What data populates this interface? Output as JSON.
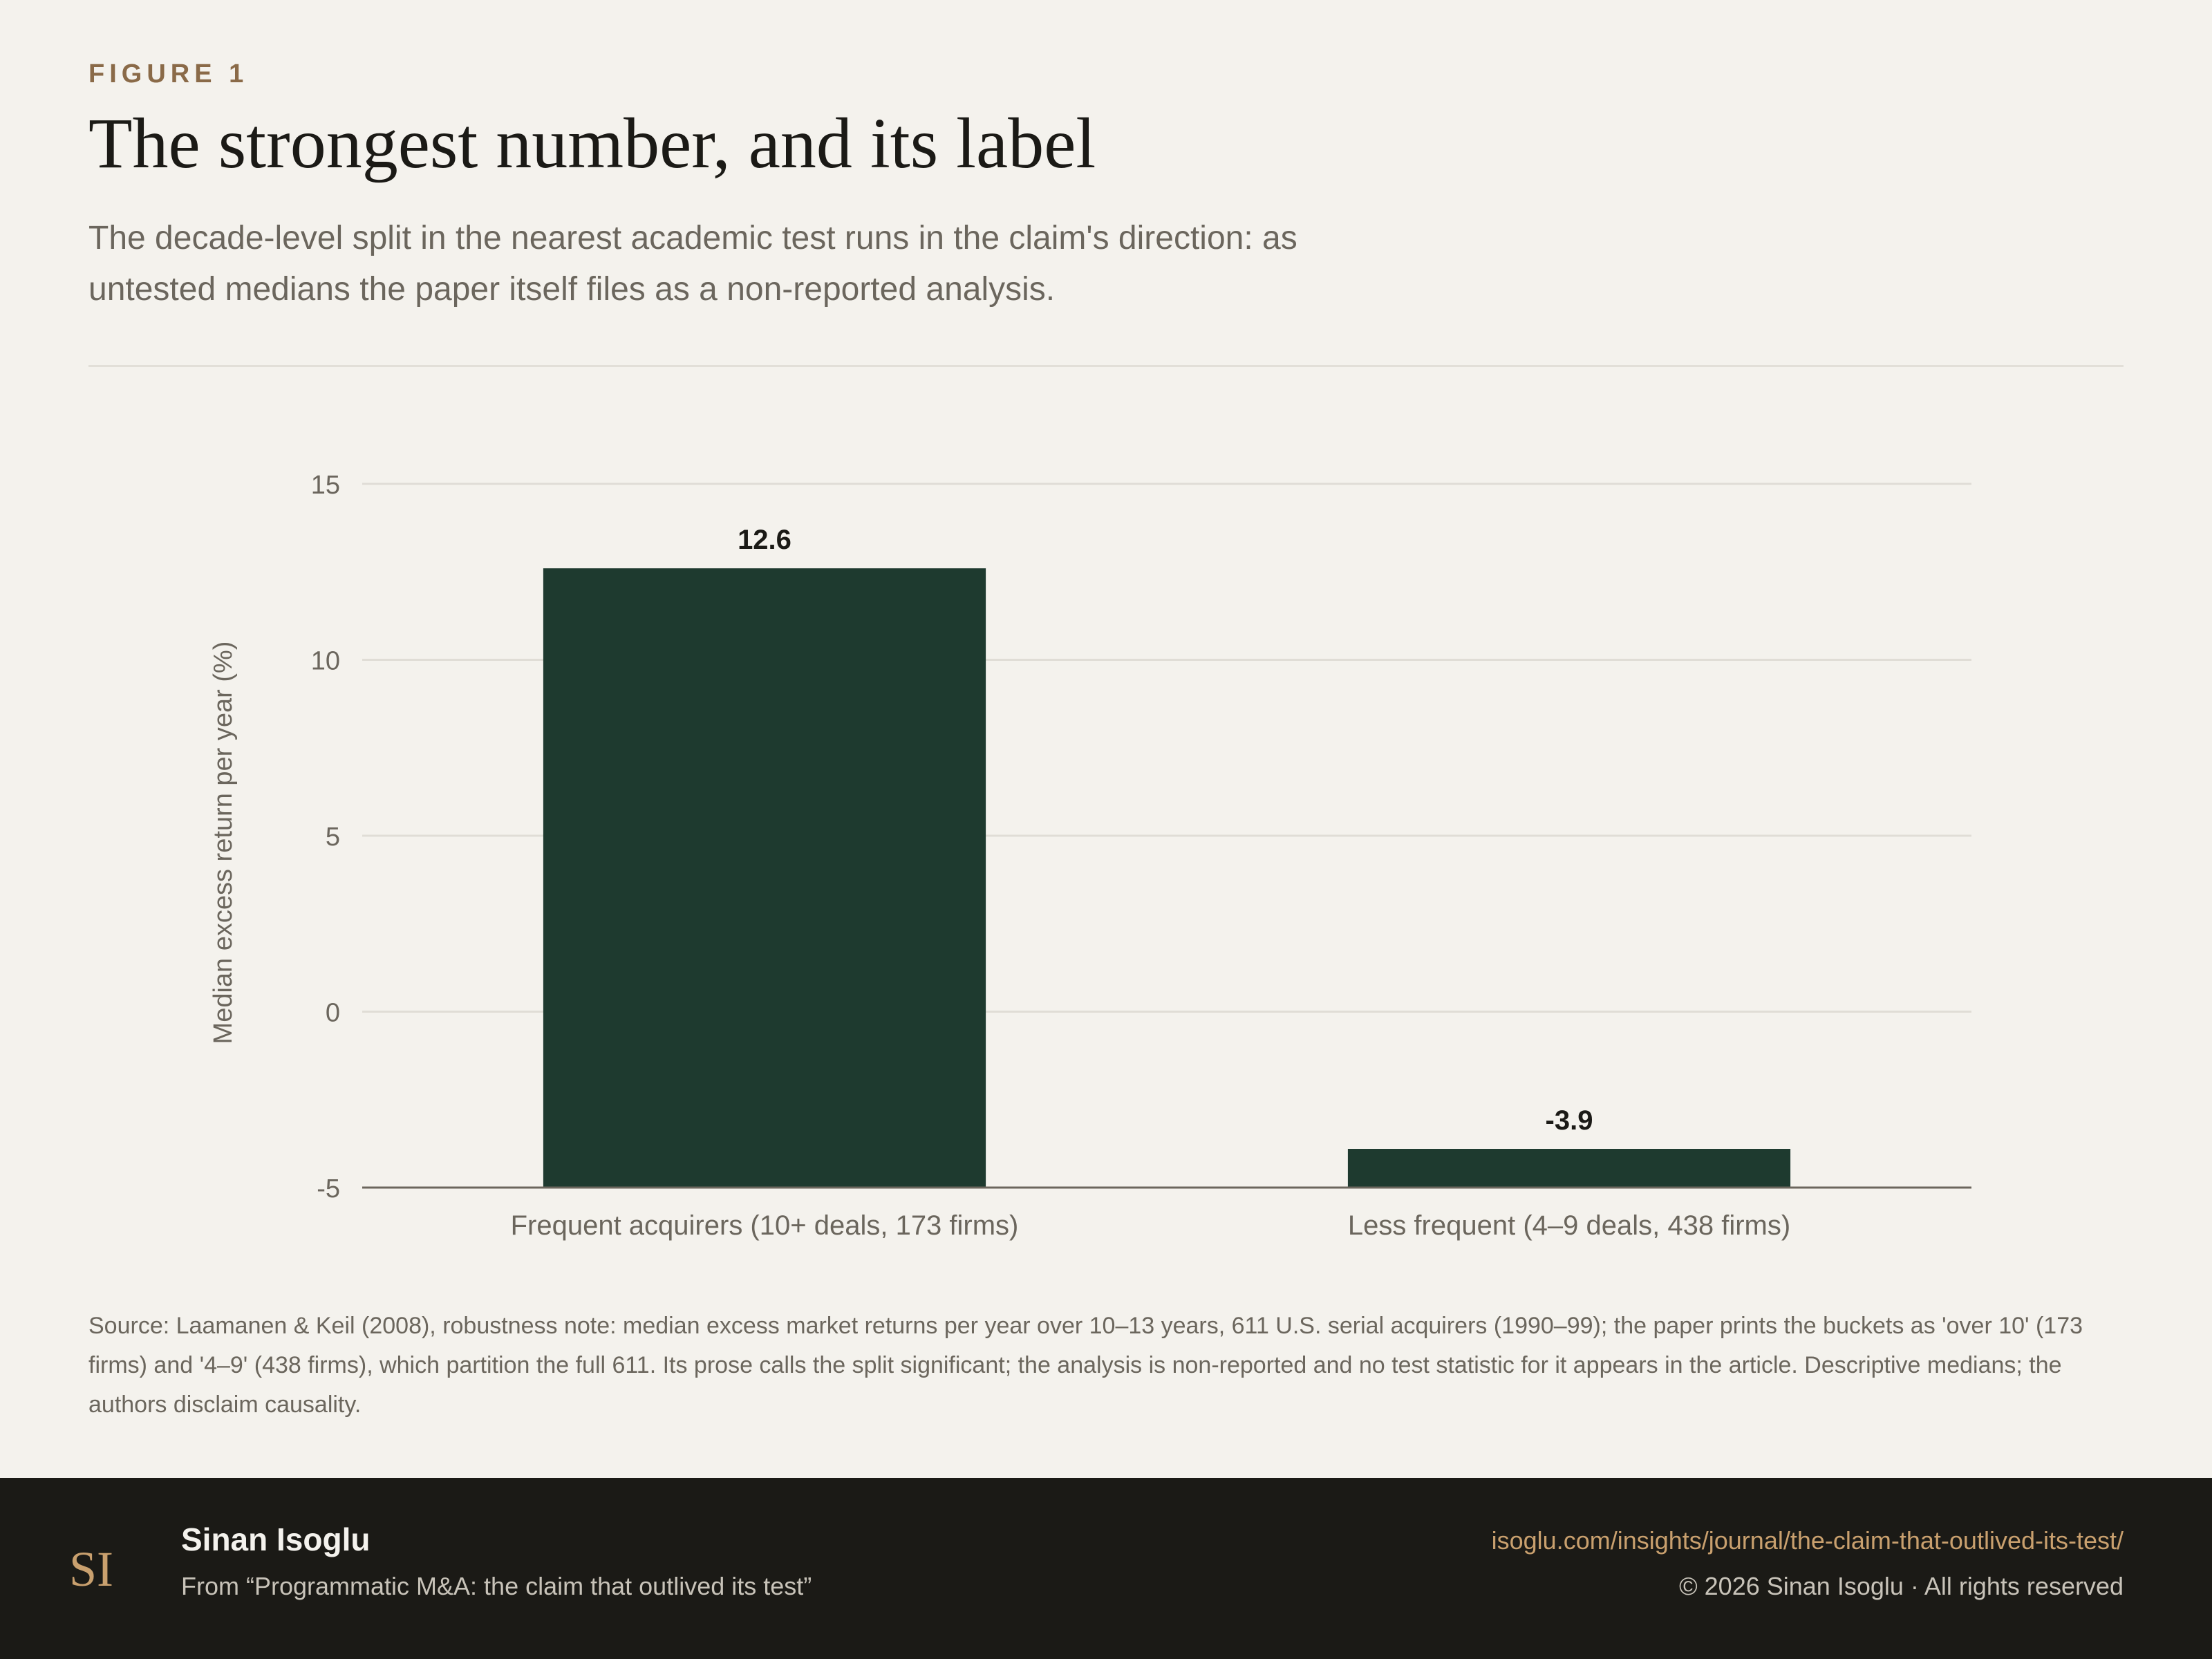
{
  "header": {
    "eyebrow": "FIGURE 1",
    "title": "The strongest number, and its label",
    "subtitle": "The decade-level split in the nearest academic test runs in the claim's direction: as untested medians the paper itself files as a non-reported analysis."
  },
  "chart_data": {
    "type": "bar",
    "categories": [
      "Frequent acquirers (10+ deals, 173 firms)",
      "Less frequent (4–9 deals, 438 firms)"
    ],
    "values": [
      12.6,
      -3.9
    ],
    "data_labels": [
      "12.6",
      "-3.9"
    ],
    "title": "",
    "xlabel": "",
    "ylabel": "Median excess return per year (%)",
    "ylim": [
      -5,
      15
    ],
    "yticks": [
      15,
      10,
      5,
      0,
      -5
    ],
    "grid": true,
    "legend": "none",
    "bar_color": "#1e3a2f"
  },
  "source_note": "Source: Laamanen & Keil (2008), robustness note: median excess market returns per year over 10–13 years, 611 U.S. serial acquirers (1990–99); the paper prints the buckets as 'over 10' (173 firms) and '4–9' (438 firms), which partition the full 611. Its prose calls the split significant; the analysis is non-reported and no test statistic for it appears in the article. Descriptive medians; the authors disclaim causality.",
  "footer": {
    "logo_text": "SI",
    "author": "Sinan Isoglu",
    "from": "From “Programmatic M&A: the claim that outlived its test”",
    "url": "isoglu.com/insights/journal/the-claim-that-outlived-its-test/",
    "copyright": "© 2026 Sinan Isoglu · All rights reserved"
  },
  "colors": {
    "background": "#f4f2ed",
    "accent": "#8a6a48",
    "footer_bg": "#1b1a16",
    "link": "#c9a06e"
  }
}
